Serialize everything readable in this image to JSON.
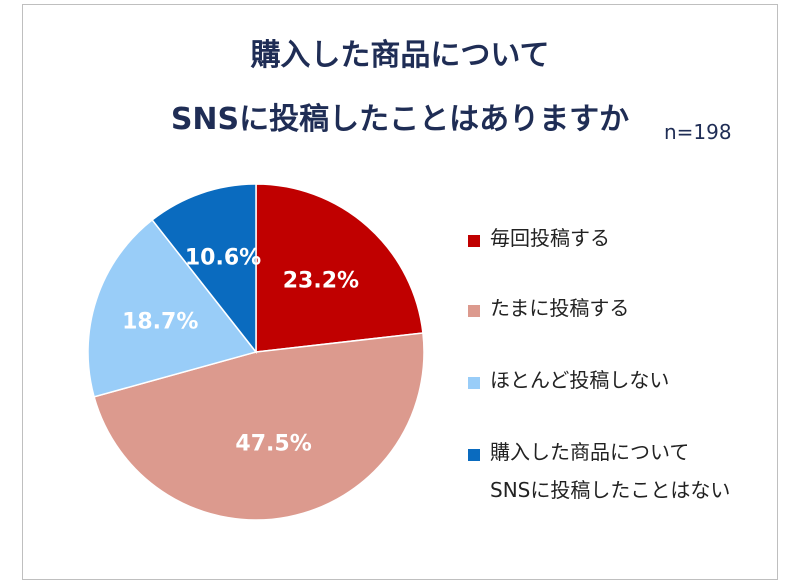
{
  "title_line1": "購入した商品について",
  "title_line2": "SNSに投稿したことはありますか",
  "sample_note": "n=198",
  "colors": {
    "title": "#1f2d55",
    "every_time": "#c00000",
    "sometimes": "#dc9a8e",
    "rarely": "#99cdf8",
    "never": "#0a6bbf"
  },
  "chart_data": {
    "type": "pie",
    "slices": [
      {
        "label": "毎回投稿する",
        "value": 23.2,
        "display": "23.2%",
        "color": "#c00000"
      },
      {
        "label": "たまに投稿する",
        "value": 47.5,
        "display": "47.5%",
        "color": "#dc9a8e"
      },
      {
        "label": "ほとんど投稿しない",
        "value": 18.7,
        "display": "18.7%",
        "color": "#99cdf8"
      },
      {
        "label": "購入した商品についてSNSに投稿したことはない",
        "value": 10.6,
        "display": "10.6%",
        "color": "#0a6bbf"
      }
    ],
    "legend_position": "right"
  },
  "legend": [
    {
      "lines": [
        "毎回投稿する"
      ]
    },
    {
      "lines": [
        "たまに投稿する"
      ]
    },
    {
      "lines": [
        "ほとんど投稿しない"
      ]
    },
    {
      "lines": [
        "購入した商品について",
        "SNSに投稿したことはない"
      ]
    }
  ]
}
